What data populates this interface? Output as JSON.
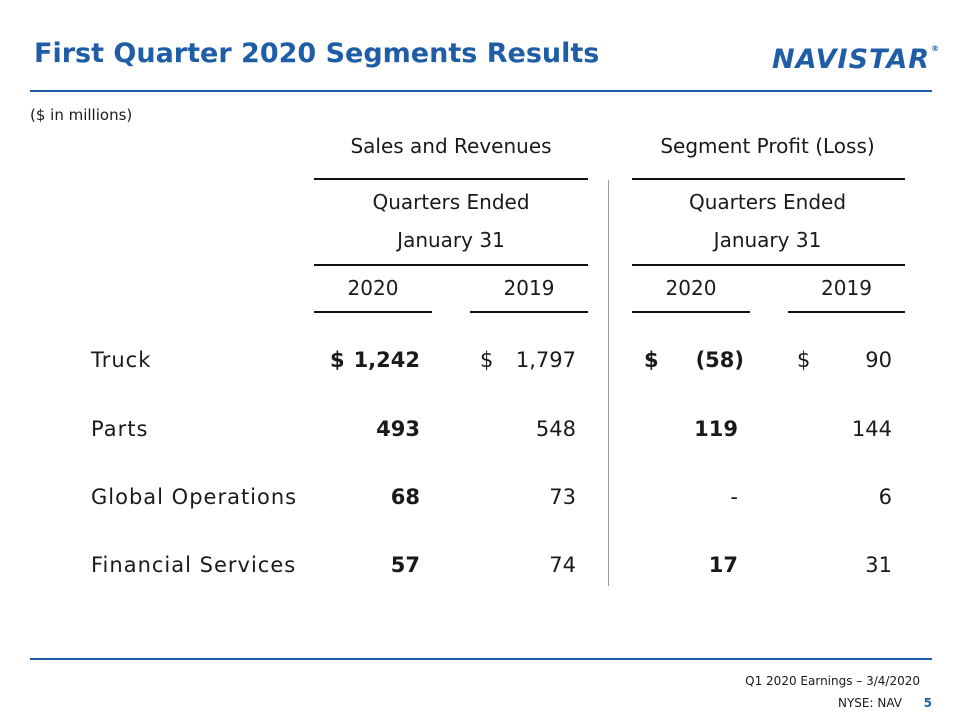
{
  "header": {
    "title": "First Quarter 2020 Segments Results",
    "logo_text": "NAVISTAR",
    "logo_mark": "®"
  },
  "units_note": "($ in millions)",
  "table": {
    "group_headers": [
      "Sales and Revenues",
      "Segment Profit (Loss)"
    ],
    "period_line1": "Quarters Ended",
    "period_line2": "January 31",
    "years": [
      "2020",
      "2019",
      "2020",
      "2019"
    ],
    "currency_symbol": "$",
    "rows": [
      {
        "label": "Truck",
        "values": [
          "1,242",
          "1,797",
          "(58)",
          "90"
        ]
      },
      {
        "label": "Parts",
        "values": [
          "493",
          "548",
          "119",
          "144"
        ]
      },
      {
        "label": "Global Operations",
        "values": [
          "68",
          "73",
          "-",
          "6"
        ]
      },
      {
        "label": "Financial Services",
        "values": [
          "57",
          "74",
          "17",
          "31"
        ]
      }
    ]
  },
  "footer": {
    "event": "Q1 2020 Earnings – 3/4/2020",
    "ticker": "NYSE: NAV",
    "page": "5"
  },
  "colors": {
    "brand_blue": "#1f5da6",
    "rule_dark": "#111111"
  }
}
